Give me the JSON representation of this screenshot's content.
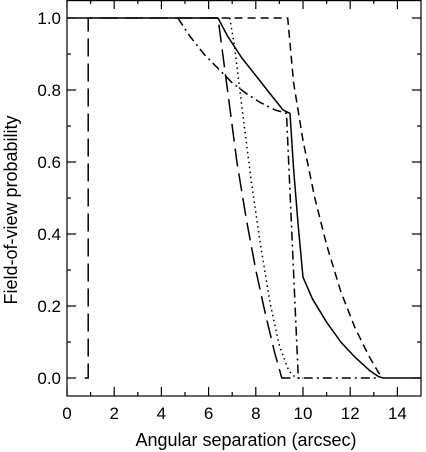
{
  "chart_data": {
    "type": "line",
    "title": "",
    "xlabel": "Angular separation (arcsec)",
    "ylabel": "Field-of-view probability",
    "xlim": [
      0,
      15
    ],
    "ylim": [
      -0.05,
      1.05
    ],
    "xticks": [
      0,
      2,
      4,
      6,
      8,
      10,
      12,
      14
    ],
    "yticks": [
      0.0,
      0.2,
      0.4,
      0.6,
      0.8,
      1.0
    ],
    "xtick_labels": [
      "0",
      "2",
      "4",
      "6",
      "8",
      "10",
      "12",
      "14"
    ],
    "ytick_labels": [
      "0.0",
      "0.2",
      "0.4",
      "0.6",
      "0.8",
      "1.0"
    ],
    "grid": false,
    "legend": false,
    "series": [
      {
        "style": "solid",
        "points": [
          [
            0,
            1.0
          ],
          [
            6.4,
            1.0
          ],
          [
            6.8,
            0.95
          ],
          [
            7.4,
            0.89
          ],
          [
            8.0,
            0.84
          ],
          [
            8.6,
            0.79
          ],
          [
            9.15,
            0.745
          ],
          [
            9.45,
            0.735
          ],
          [
            9.6,
            0.58
          ],
          [
            9.8,
            0.42
          ],
          [
            10.0,
            0.28
          ],
          [
            10.4,
            0.22
          ],
          [
            11.0,
            0.155
          ],
          [
            11.6,
            0.1
          ],
          [
            12.2,
            0.058
          ],
          [
            12.8,
            0.022
          ],
          [
            13.2,
            0.004
          ],
          [
            13.4,
            0.0
          ],
          [
            15,
            0.0
          ]
        ]
      },
      {
        "style": "long-dash",
        "points": [
          [
            0.75,
            0.0
          ],
          [
            0.9,
            0.0
          ],
          [
            0.9,
            1.0
          ],
          [
            6.4,
            1.0
          ],
          [
            6.8,
            0.8
          ],
          [
            7.2,
            0.6
          ],
          [
            7.6,
            0.44
          ],
          [
            8.0,
            0.3
          ],
          [
            8.4,
            0.18
          ],
          [
            8.8,
            0.07
          ],
          [
            9.1,
            0.0
          ],
          [
            9.5,
            0.0
          ]
        ]
      },
      {
        "style": "dash",
        "points": [
          [
            6.0,
            1.0
          ],
          [
            9.35,
            1.0
          ],
          [
            9.6,
            0.82
          ],
          [
            10.0,
            0.66
          ],
          [
            10.5,
            0.5
          ],
          [
            11.0,
            0.37
          ],
          [
            11.6,
            0.24
          ],
          [
            12.2,
            0.14
          ],
          [
            12.8,
            0.06
          ],
          [
            13.2,
            0.015
          ],
          [
            13.4,
            0.0
          ]
        ]
      },
      {
        "style": "dot",
        "points": [
          [
            6.9,
            1.0
          ],
          [
            7.1,
            0.92
          ],
          [
            7.4,
            0.76
          ],
          [
            7.8,
            0.55
          ],
          [
            8.2,
            0.37
          ],
          [
            8.6,
            0.21
          ],
          [
            9.0,
            0.09
          ],
          [
            9.4,
            0.02
          ],
          [
            9.7,
            0.0
          ],
          [
            10.0,
            0.0
          ]
        ]
      },
      {
        "style": "dash-dot",
        "points": [
          [
            4.7,
            1.0
          ],
          [
            5.2,
            0.95
          ],
          [
            5.8,
            0.9
          ],
          [
            6.4,
            0.86
          ],
          [
            7.0,
            0.82
          ],
          [
            7.6,
            0.79
          ],
          [
            8.2,
            0.765
          ],
          [
            8.8,
            0.745
          ],
          [
            9.3,
            0.735
          ],
          [
            9.8,
            0.0
          ],
          [
            13.2,
            0.0
          ]
        ]
      }
    ]
  }
}
